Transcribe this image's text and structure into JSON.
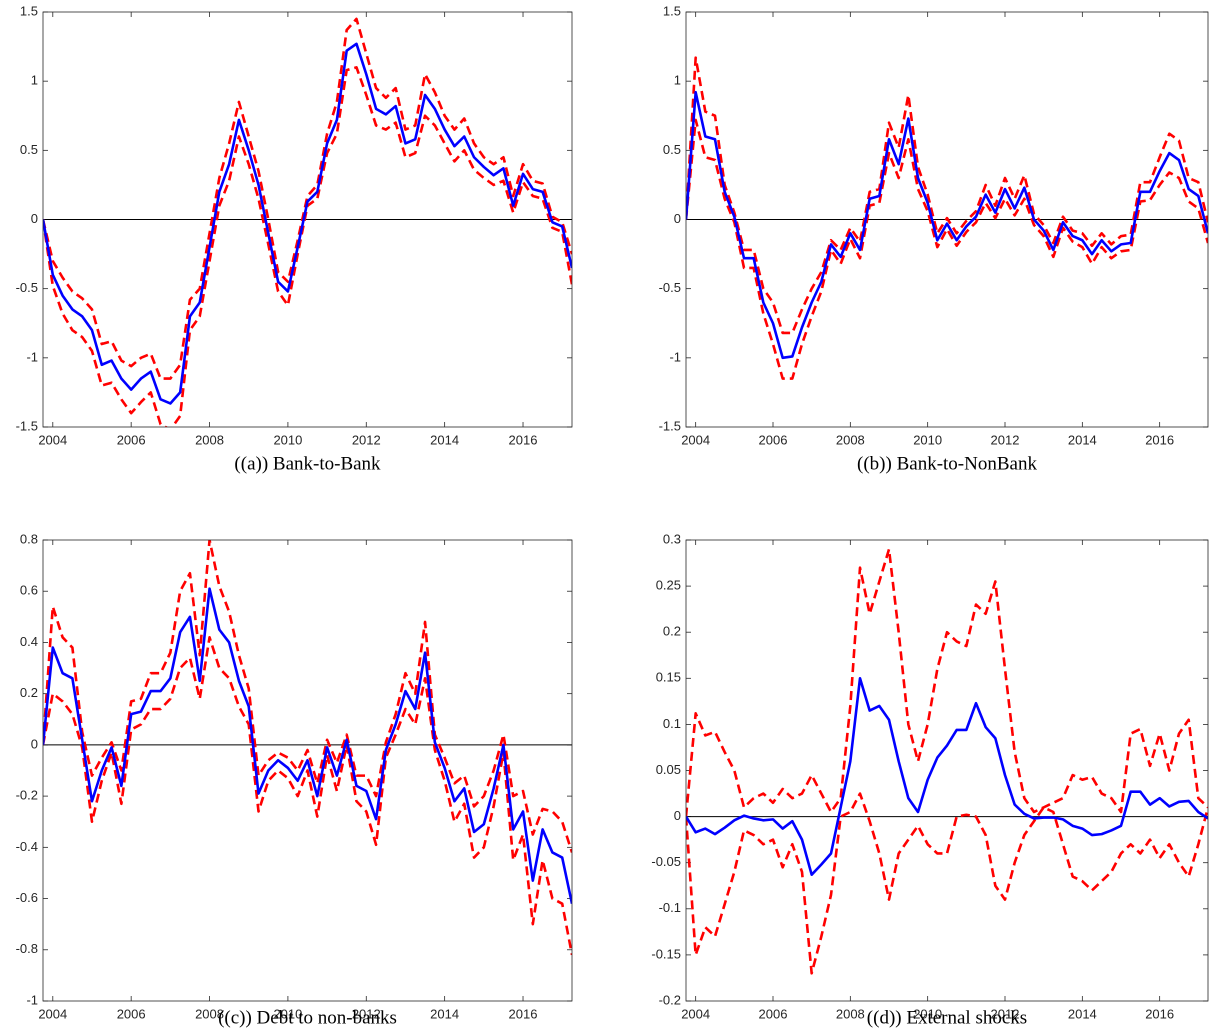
{
  "chart_data": [
    {
      "type": "line",
      "caption": "((a)) Bank-to-Bank",
      "x": [
        2003.75,
        2004,
        2004.25,
        2004.5,
        2004.75,
        2005,
        2005.25,
        2005.5,
        2005.75,
        2006,
        2006.25,
        2006.5,
        2006.75,
        2007,
        2007.25,
        2007.5,
        2007.75,
        2008,
        2008.25,
        2008.5,
        2008.75,
        2009,
        2009.25,
        2009.5,
        2009.75,
        2010,
        2010.25,
        2010.5,
        2010.75,
        2011,
        2011.25,
        2011.5,
        2011.75,
        2012,
        2012.25,
        2012.5,
        2012.75,
        2013,
        2013.25,
        2013.5,
        2013.75,
        2014,
        2014.25,
        2014.5,
        2014.75,
        2015,
        2015.25,
        2015.5,
        2015.75,
        2016,
        2016.25,
        2016.5,
        2016.75,
        2017,
        2017.25
      ],
      "series": [
        {
          "color": "#ff0000",
          "dashed": true,
          "values": [
            0,
            -0.3,
            -0.42,
            -0.52,
            -0.57,
            -0.65,
            -0.9,
            -0.88,
            -1.02,
            -1.06,
            -1,
            -0.97,
            -1.15,
            -1.15,
            -1.05,
            -0.58,
            -0.5,
            -0.1,
            0.3,
            0.55,
            0.85,
            0.6,
            0.35,
            0,
            -0.38,
            -0.45,
            -0.15,
            0.17,
            0.25,
            0.62,
            0.85,
            1.37,
            1.45,
            1.2,
            0.95,
            0.88,
            0.95,
            0.65,
            0.68,
            1.05,
            0.92,
            0.75,
            0.65,
            0.73,
            0.55,
            0.45,
            0.4,
            0.45,
            0.17,
            0.4,
            0.28,
            0.26,
            0.02,
            -0.02,
            -0.25
          ]
        },
        {
          "color": "#ff0000",
          "dashed": true,
          "values": [
            0,
            -0.48,
            -0.68,
            -0.8,
            -0.85,
            -0.95,
            -1.2,
            -1.18,
            -1.3,
            -1.4,
            -1.32,
            -1.25,
            -1.48,
            -1.52,
            -1.42,
            -0.8,
            -0.7,
            -0.3,
            0.1,
            0.28,
            0.6,
            0.4,
            0.15,
            -0.18,
            -0.52,
            -0.62,
            -0.25,
            0.1,
            0.15,
            0.48,
            0.62,
            1.08,
            1.1,
            0.9,
            0.68,
            0.65,
            0.7,
            0.45,
            0.48,
            0.75,
            0.68,
            0.55,
            0.42,
            0.5,
            0.36,
            0.3,
            0.25,
            0.28,
            0.05,
            0.27,
            0.17,
            0.15,
            -0.06,
            -0.09,
            -0.47
          ]
        },
        {
          "color": "#0000ff",
          "dashed": false,
          "values": [
            0,
            -0.4,
            -0.55,
            -0.65,
            -0.7,
            -0.8,
            -1.05,
            -1.02,
            -1.15,
            -1.23,
            -1.15,
            -1.1,
            -1.3,
            -1.33,
            -1.25,
            -0.7,
            -0.6,
            -0.2,
            0.2,
            0.4,
            0.72,
            0.5,
            0.25,
            -0.1,
            -0.45,
            -0.52,
            -0.2,
            0.13,
            0.2,
            0.55,
            0.72,
            1.22,
            1.27,
            1.05,
            0.8,
            0.76,
            0.82,
            0.55,
            0.58,
            0.9,
            0.8,
            0.65,
            0.53,
            0.6,
            0.45,
            0.38,
            0.32,
            0.37,
            0.1,
            0.33,
            0.22,
            0.2,
            -0.02,
            -0.05,
            -0.35
          ]
        }
      ],
      "xlim": [
        2003.75,
        2017.25
      ],
      "xticks": [
        2004,
        2006,
        2008,
        2010,
        2012,
        2014,
        2016
      ],
      "ylim": [
        -1.5,
        1.5
      ],
      "yticks": [
        -1.5,
        -1,
        -0.5,
        0,
        0.5,
        1,
        1.5
      ],
      "hline": 0
    },
    {
      "type": "line",
      "caption": "((b)) Bank-to-NonBank",
      "x": [
        2003.75,
        2004,
        2004.25,
        2004.5,
        2004.75,
        2005,
        2005.25,
        2005.5,
        2005.75,
        2006,
        2006.25,
        2006.5,
        2006.75,
        2007,
        2007.25,
        2007.5,
        2007.75,
        2008,
        2008.25,
        2008.5,
        2008.75,
        2009,
        2009.25,
        2009.5,
        2009.75,
        2010,
        2010.25,
        2010.5,
        2010.75,
        2011,
        2011.25,
        2011.5,
        2011.75,
        2012,
        2012.25,
        2012.5,
        2012.75,
        2013,
        2013.25,
        2013.5,
        2013.75,
        2014,
        2014.25,
        2014.5,
        2014.75,
        2015,
        2015.25,
        2015.5,
        2015.75,
        2016,
        2016.25,
        2016.5,
        2016.75,
        2017,
        2017.25
      ],
      "series": [
        {
          "color": "#ff0000",
          "dashed": true,
          "values": [
            0,
            1.17,
            0.78,
            0.75,
            0.25,
            0.05,
            -0.22,
            -0.22,
            -0.5,
            -0.6,
            -0.82,
            -0.82,
            -0.65,
            -0.5,
            -0.38,
            -0.15,
            -0.22,
            -0.06,
            -0.16,
            0.2,
            0.22,
            0.7,
            0.52,
            0.9,
            0.38,
            0.18,
            -0.1,
            0.01,
            -0.1,
            -0.01,
            0.06,
            0.25,
            0.1,
            0.3,
            0.15,
            0.32,
            0.04,
            -0.04,
            -0.17,
            0.02,
            -0.08,
            -0.1,
            -0.19,
            -0.1,
            -0.18,
            -0.12,
            -0.11,
            0.27,
            0.27,
            0.45,
            0.62,
            0.57,
            0.3,
            0.27,
            -0.02
          ]
        },
        {
          "color": "#ff0000",
          "dashed": true,
          "values": [
            0,
            0.72,
            0.45,
            0.43,
            0.15,
            -0.02,
            -0.35,
            -0.35,
            -0.68,
            -0.9,
            -1.15,
            -1.15,
            -0.9,
            -0.7,
            -0.52,
            -0.22,
            -0.32,
            -0.14,
            -0.28,
            0.1,
            0.12,
            0.48,
            0.3,
            0.58,
            0.22,
            0.06,
            -0.2,
            -0.07,
            -0.19,
            -0.09,
            -0.02,
            0.12,
            0.01,
            0.15,
            0.03,
            0.15,
            -0.04,
            -0.12,
            -0.27,
            -0.06,
            -0.16,
            -0.2,
            -0.32,
            -0.2,
            -0.28,
            -0.23,
            -0.22,
            0.13,
            0.14,
            0.25,
            0.34,
            0.3,
            0.13,
            0.08,
            -0.17
          ]
        },
        {
          "color": "#0000ff",
          "dashed": false,
          "values": [
            0,
            0.92,
            0.6,
            0.58,
            0.2,
            0.02,
            -0.28,
            -0.28,
            -0.6,
            -0.75,
            -1,
            -0.99,
            -0.78,
            -0.6,
            -0.45,
            -0.18,
            -0.27,
            -0.1,
            -0.22,
            0.15,
            0.17,
            0.58,
            0.4,
            0.73,
            0.3,
            0.12,
            -0.15,
            -0.03,
            -0.15,
            -0.05,
            0.02,
            0.18,
            0.05,
            0.22,
            0.08,
            0.23,
            0,
            -0.08,
            -0.22,
            -0.02,
            -0.12,
            -0.15,
            -0.25,
            -0.15,
            -0.23,
            -0.18,
            -0.17,
            0.2,
            0.2,
            0.35,
            0.48,
            0.43,
            0.22,
            0.17,
            -0.1
          ]
        }
      ],
      "xlim": [
        2003.75,
        2017.25
      ],
      "xticks": [
        2004,
        2006,
        2008,
        2010,
        2012,
        2014,
        2016
      ],
      "ylim": [
        -1.5,
        1.5
      ],
      "yticks": [
        -1.5,
        -1,
        -0.5,
        0,
        0.5,
        1,
        1.5
      ],
      "hline": 0
    },
    {
      "type": "line",
      "caption": "((c)) Debt to non-banks",
      "x": [
        2003.75,
        2004,
        2004.25,
        2004.5,
        2004.75,
        2005,
        2005.25,
        2005.5,
        2005.75,
        2006,
        2006.25,
        2006.5,
        2006.75,
        2007,
        2007.25,
        2007.5,
        2007.75,
        2008,
        2008.25,
        2008.5,
        2008.75,
        2009,
        2009.25,
        2009.5,
        2009.75,
        2010,
        2010.25,
        2010.5,
        2010.75,
        2011,
        2011.25,
        2011.5,
        2011.75,
        2012,
        2012.25,
        2012.5,
        2012.75,
        2013,
        2013.25,
        2013.5,
        2013.75,
        2014,
        2014.25,
        2014.5,
        2014.75,
        2015,
        2015.25,
        2015.5,
        2015.75,
        2016,
        2016.25,
        2016.5,
        2016.75,
        2017,
        2017.25
      ],
      "series": [
        {
          "color": "#ff0000",
          "dashed": true,
          "values": [
            0,
            0.54,
            0.42,
            0.38,
            0.05,
            -0.12,
            -0.05,
            0.01,
            -0.1,
            0.17,
            0.18,
            0.28,
            0.28,
            0.36,
            0.6,
            0.67,
            0.35,
            0.8,
            0.62,
            0.52,
            0.35,
            0.22,
            -0.12,
            -0.06,
            -0.03,
            -0.05,
            -0.1,
            -0.02,
            -0.15,
            0.02,
            -0.07,
            0.04,
            -0.12,
            -0.12,
            -0.2,
            0.01,
            0.12,
            0.28,
            0.2,
            0.48,
            0.04,
            -0.05,
            -0.15,
            -0.12,
            -0.24,
            -0.2,
            -0.1,
            0.04,
            -0.2,
            -0.18,
            -0.35,
            -0.25,
            -0.26,
            -0.3,
            -0.42
          ]
        },
        {
          "color": "#ff0000",
          "dashed": true,
          "values": [
            0,
            0.2,
            0.17,
            0.12,
            -0.01,
            -0.3,
            -0.14,
            -0.03,
            -0.23,
            0.06,
            0.08,
            0.14,
            0.14,
            0.18,
            0.3,
            0.34,
            0.18,
            0.42,
            0.3,
            0.26,
            0.15,
            0.08,
            -0.26,
            -0.14,
            -0.1,
            -0.13,
            -0.2,
            -0.1,
            -0.28,
            -0.04,
            -0.18,
            0,
            -0.22,
            -0.26,
            -0.39,
            -0.05,
            0.04,
            0.14,
            0.08,
            0.26,
            -0.02,
            -0.14,
            -0.3,
            -0.23,
            -0.44,
            -0.4,
            -0.24,
            -0.03,
            -0.45,
            -0.35,
            -0.7,
            -0.45,
            -0.6,
            -0.62,
            -0.82
          ]
        },
        {
          "color": "#0000ff",
          "dashed": false,
          "values": [
            0,
            0.38,
            0.28,
            0.26,
            0.02,
            -0.22,
            -0.1,
            -0.01,
            -0.16,
            0.12,
            0.13,
            0.21,
            0.21,
            0.26,
            0.44,
            0.5,
            0.25,
            0.61,
            0.45,
            0.4,
            0.25,
            0.15,
            -0.19,
            -0.1,
            -0.06,
            -0.09,
            -0.14,
            -0.06,
            -0.2,
            -0.01,
            -0.12,
            0.02,
            -0.16,
            -0.18,
            -0.29,
            -0.02,
            0.08,
            0.21,
            0.14,
            0.36,
            0.01,
            -0.09,
            -0.22,
            -0.17,
            -0.34,
            -0.31,
            -0.17,
            0,
            -0.33,
            -0.26,
            -0.53,
            -0.33,
            -0.42,
            -0.44,
            -0.62
          ]
        }
      ],
      "xlim": [
        2003.75,
        2017.25
      ],
      "xticks": [
        2004,
        2006,
        2008,
        2010,
        2012,
        2014,
        2016
      ],
      "ylim": [
        -1,
        0.8
      ],
      "yticks": [
        -1,
        -0.8,
        -0.6,
        -0.4,
        -0.2,
        0,
        0.2,
        0.4,
        0.6,
        0.8
      ],
      "hline": 0
    },
    {
      "type": "line",
      "caption": "((d)) External shocks",
      "x": [
        2003.75,
        2004,
        2004.25,
        2004.5,
        2004.75,
        2005,
        2005.25,
        2005.5,
        2005.75,
        2006,
        2006.25,
        2006.5,
        2006.75,
        2007,
        2007.25,
        2007.5,
        2007.75,
        2008,
        2008.25,
        2008.5,
        2008.75,
        2009,
        2009.25,
        2009.5,
        2009.75,
        2010,
        2010.25,
        2010.5,
        2010.75,
        2011,
        2011.25,
        2011.5,
        2011.75,
        2012,
        2012.25,
        2012.5,
        2012.75,
        2013,
        2013.25,
        2013.5,
        2013.75,
        2014,
        2014.25,
        2014.5,
        2014.75,
        2015,
        2015.25,
        2015.5,
        2015.75,
        2016,
        2016.25,
        2016.5,
        2016.75,
        2017,
        2017.25
      ],
      "series": [
        {
          "color": "#ff0000",
          "dashed": true,
          "values": [
            0,
            0.112,
            0.088,
            0.092,
            0.07,
            0.05,
            0.01,
            0.02,
            0.025,
            0.015,
            0.03,
            0.02,
            0.025,
            0.045,
            0.025,
            0.005,
            0.02,
            0.12,
            0.27,
            0.22,
            0.255,
            0.29,
            0.2,
            0.1,
            0.06,
            0.1,
            0.16,
            0.2,
            0.19,
            0.185,
            0.23,
            0.22,
            0.255,
            0.16,
            0.07,
            0.02,
            0.005,
            0.01,
            0.015,
            0.02,
            0.045,
            0.04,
            0.043,
            0.025,
            0.02,
            0.005,
            0.09,
            0.095,
            0.055,
            0.09,
            0.05,
            0.09,
            0.105,
            0.02,
            0.01
          ]
        },
        {
          "color": "#ff0000",
          "dashed": true,
          "values": [
            0,
            -0.15,
            -0.12,
            -0.13,
            -0.095,
            -0.06,
            -0.015,
            -0.02,
            -0.03,
            -0.025,
            -0.055,
            -0.03,
            -0.06,
            -0.17,
            -0.13,
            -0.085,
            0,
            0.005,
            0.025,
            -0.005,
            -0.04,
            -0.09,
            -0.04,
            -0.025,
            -0.01,
            -0.03,
            -0.04,
            -0.04,
            0,
            0.002,
            0,
            -0.02,
            -0.075,
            -0.09,
            -0.05,
            -0.02,
            -0.005,
            0.01,
            0.005,
            -0.03,
            -0.065,
            -0.07,
            -0.08,
            -0.07,
            -0.06,
            -0.04,
            -0.03,
            -0.04,
            -0.025,
            -0.045,
            -0.03,
            -0.05,
            -0.065,
            -0.03,
            0.01
          ]
        },
        {
          "color": "#0000ff",
          "dashed": false,
          "values": [
            0,
            -0.017,
            -0.013,
            -0.019,
            -0.012,
            -0.004,
            0.001,
            -0.002,
            -0.004,
            -0.003,
            -0.013,
            -0.005,
            -0.025,
            -0.063,
            -0.052,
            -0.04,
            0.01,
            0.06,
            0.15,
            0.115,
            0.12,
            0.105,
            0.06,
            0.02,
            0.005,
            0.04,
            0.064,
            0.077,
            0.094,
            0.094,
            0.123,
            0.097,
            0.085,
            0.045,
            0.013,
            0.003,
            -0.002,
            -0.001,
            -0.001,
            -0.003,
            -0.01,
            -0.013,
            -0.02,
            -0.019,
            -0.015,
            -0.01,
            0.027,
            0.027,
            0.013,
            0.02,
            0.011,
            0.016,
            0.017,
            0.005,
            -0.002
          ]
        }
      ],
      "xlim": [
        2003.75,
        2017.25
      ],
      "xticks": [
        2004,
        2006,
        2008,
        2010,
        2012,
        2014,
        2016
      ],
      "ylim": [
        -0.2,
        0.3
      ],
      "yticks": [
        -0.2,
        -0.15,
        -0.1,
        -0.05,
        0,
        0.05,
        0.1,
        0.15,
        0.2,
        0.25,
        0.3
      ],
      "hline": 0
    }
  ]
}
